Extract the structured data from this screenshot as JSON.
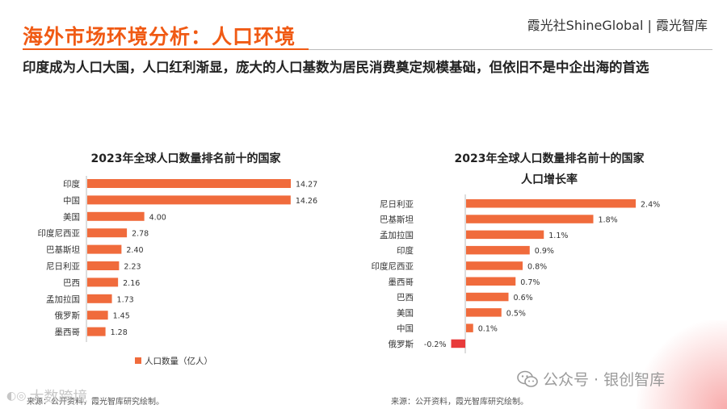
{
  "header": {
    "title": "海外市场环境分析：人口环境",
    "brand": "霞光社ShineGlobal | 霞光智库",
    "subtitle": "印度成为人口大国，人口红利渐显，庞大的人口基数为居民消费奠定规模基础，但依旧不是中企出海的首选"
  },
  "chart_data": [
    {
      "type": "bar",
      "orientation": "horizontal",
      "title": "2023年全球人口数量排名前十的国家",
      "categories": [
        "印度",
        "中国",
        "美国",
        "印度尼西亚",
        "巴基斯坦",
        "尼日利亚",
        "巴西",
        "孟加拉国",
        "俄罗斯",
        "墨西哥"
      ],
      "series": [
        {
          "name": "人口数量（亿人）",
          "values": [
            14.27,
            14.26,
            4.0,
            2.78,
            2.4,
            2.23,
            2.16,
            1.73,
            1.45,
            1.28
          ]
        }
      ],
      "value_labels": [
        "14.27",
        "14.26",
        "4.00",
        "2.78",
        "2.40",
        "2.23",
        "2.16",
        "1.73",
        "1.45",
        "1.28"
      ],
      "legend": "bottom",
      "source": "来源：公开资料，霞光智库研究绘制。",
      "colors": {
        "bar": "#f06b3c"
      }
    },
    {
      "type": "bar",
      "orientation": "horizontal",
      "title_line1": "2023年全球人口数量排名前十的国家",
      "title_line2": "人口增长率",
      "categories": [
        "尼日利亚",
        "巴基斯坦",
        "孟加拉国",
        "印度",
        "印度尼西亚",
        "墨西哥",
        "巴西",
        "美国",
        "中国",
        "俄罗斯"
      ],
      "values": [
        2.4,
        1.8,
        1.1,
        0.9,
        0.8,
        0.7,
        0.6,
        0.5,
        0.1,
        -0.2
      ],
      "value_labels": [
        "2.4%",
        "1.8%",
        "1.1%",
        "0.9%",
        "0.8%",
        "0.7%",
        "0.6%",
        "0.5%",
        "0.1%",
        "-0.2%"
      ],
      "source": "来源：公开资料，霞光智库研究绘制。",
      "colors": {
        "bar": "#f06b3c",
        "negative": "#e83a3a"
      }
    }
  ],
  "watermark": {
    "text": "公众号 · 银创智库",
    "overlay_text": "大数跨境"
  }
}
